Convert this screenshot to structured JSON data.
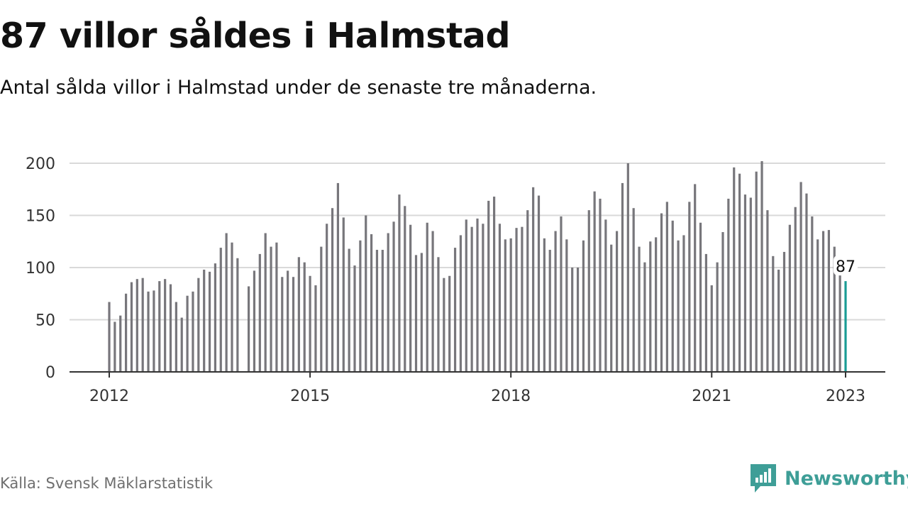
{
  "header": {
    "title": "87 villor såldes i Halmstad",
    "subtitle": "Antal sålda villor i Halmstad under de senaste tre månaderna."
  },
  "footer": {
    "source": "Källa: Svensk Mäklarstatistik",
    "brand": "Newsworthy",
    "brand_icon": "newsworthy-logo-icon"
  },
  "colors": {
    "bar": "#77767b",
    "highlight": "#1a9c95",
    "grid": "#d9d9d9",
    "axis": "#333333",
    "brand": "#3e9e97"
  },
  "chart_data": {
    "type": "bar",
    "title": "87 villor såldes i Halmstad",
    "subtitle": "Antal sålda villor i Halmstad under de senaste tre månaderna.",
    "xlabel": "",
    "ylabel": "",
    "ylim": [
      0,
      200
    ],
    "y_ticks": [
      0,
      50,
      100,
      150,
      200
    ],
    "x_ticks": [
      "2012",
      "2015",
      "2018",
      "2021",
      "2023"
    ],
    "x_range": [
      "2011-08",
      "2023-05"
    ],
    "grid": true,
    "legend": "none",
    "highlight_label": "87",
    "x": [
      "2012-01",
      "2012-02",
      "2012-03",
      "2012-04",
      "2012-05",
      "2012-06",
      "2012-07",
      "2012-08",
      "2012-09",
      "2012-10",
      "2012-11",
      "2012-12",
      "2013-01",
      "2013-02",
      "2013-03",
      "2013-04",
      "2013-05",
      "2013-06",
      "2013-07",
      "2013-08",
      "2013-09",
      "2013-10",
      "2013-11",
      "2013-12",
      "2014-01",
      "2014-02",
      "2014-03",
      "2014-04",
      "2014-05",
      "2014-06",
      "2014-07",
      "2014-08",
      "2014-09",
      "2014-10",
      "2014-11",
      "2014-12",
      "2015-01",
      "2015-02",
      "2015-03",
      "2015-04",
      "2015-05",
      "2015-06",
      "2015-07",
      "2015-08",
      "2015-09",
      "2015-10",
      "2015-11",
      "2015-12",
      "2016-01",
      "2016-02",
      "2016-03",
      "2016-04",
      "2016-05",
      "2016-06",
      "2016-07",
      "2016-08",
      "2016-09",
      "2016-10",
      "2016-11",
      "2016-12",
      "2017-01",
      "2017-02",
      "2017-03",
      "2017-04",
      "2017-05",
      "2017-06",
      "2017-07",
      "2017-08",
      "2017-09",
      "2017-10",
      "2017-11",
      "2017-12",
      "2018-01",
      "2018-02",
      "2018-03",
      "2018-04",
      "2018-05",
      "2018-06",
      "2018-07",
      "2018-08",
      "2018-09",
      "2018-10",
      "2018-11",
      "2018-12",
      "2019-01",
      "2019-02",
      "2019-03",
      "2019-04",
      "2019-05",
      "2019-06",
      "2019-07",
      "2019-08",
      "2019-09",
      "2019-10",
      "2019-11",
      "2019-12",
      "2020-01",
      "2020-02",
      "2020-03",
      "2020-04",
      "2020-05",
      "2020-06",
      "2020-07",
      "2020-08",
      "2020-09",
      "2020-10",
      "2020-11",
      "2020-12",
      "2021-01",
      "2021-02",
      "2021-03",
      "2021-04",
      "2021-05",
      "2021-06",
      "2021-07",
      "2021-08",
      "2021-09",
      "2021-10",
      "2021-11",
      "2021-12",
      "2022-01",
      "2022-02",
      "2022-03",
      "2022-04",
      "2022-05",
      "2022-06",
      "2022-07",
      "2022-08",
      "2022-09",
      "2022-10",
      "2022-11",
      "2022-12",
      "2023-01"
    ],
    "values": [
      67,
      48,
      54,
      75,
      86,
      89,
      90,
      77,
      78,
      87,
      89,
      84,
      67,
      52,
      73,
      77,
      90,
      98,
      96,
      104,
      119,
      133,
      124,
      109,
      0,
      82,
      97,
      113,
      133,
      120,
      124,
      91,
      97,
      91,
      110,
      105,
      92,
      83,
      120,
      142,
      157,
      181,
      148,
      118,
      102,
      126,
      150,
      132,
      117,
      117,
      133,
      144,
      170,
      159,
      141,
      112,
      114,
      143,
      135,
      110,
      90,
      92,
      119,
      131,
      146,
      139,
      147,
      142,
      164,
      168,
      142,
      127,
      128,
      138,
      139,
      155,
      177,
      169,
      128,
      117,
      135,
      149,
      127,
      100,
      100,
      126,
      155,
      173,
      166,
      146,
      122,
      135,
      181,
      200,
      157,
      120,
      105,
      125,
      129,
      152,
      163,
      145,
      126,
      131,
      163,
      180,
      143,
      113,
      83,
      105,
      134,
      166,
      196,
      190,
      170,
      167,
      192,
      202,
      155,
      111,
      98,
      115,
      141,
      158,
      182,
      171,
      149,
      127,
      135,
      136,
      120,
      97,
      87
    ]
  }
}
